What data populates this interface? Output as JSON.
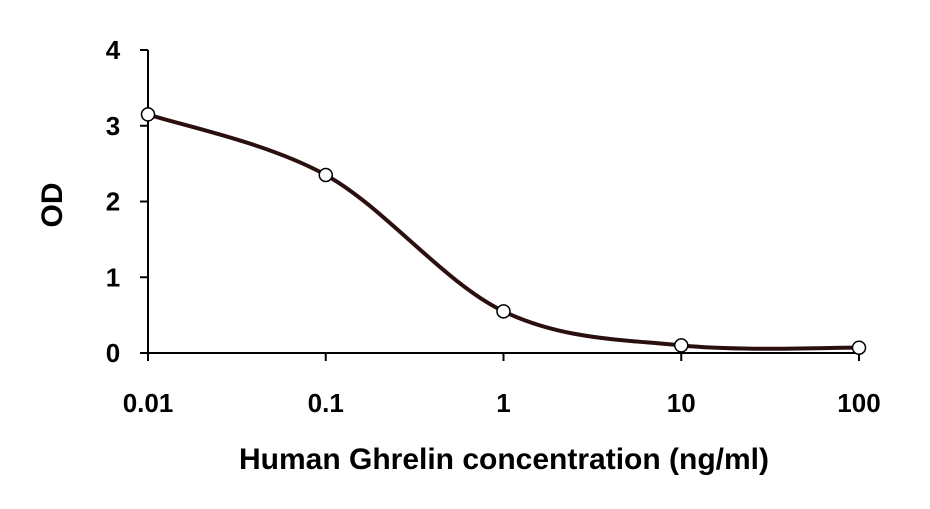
{
  "chart_data": {
    "type": "line",
    "xscale": "log",
    "xlim": [
      0.01,
      100
    ],
    "ylim": [
      0,
      4
    ],
    "xticks": [
      0.01,
      0.1,
      1,
      10,
      100
    ],
    "xtick_labels": [
      "0.01",
      "0.1",
      "1",
      "10",
      "100"
    ],
    "yticks": [
      0,
      1,
      2,
      3,
      4
    ],
    "ytick_labels": [
      "0",
      "1",
      "2",
      "3",
      "4"
    ],
    "xlabel": "Human Ghrelin concentration (ng/ml)",
    "ylabel": "OD",
    "grid": false,
    "series": [
      {
        "x": [
          0.01,
          0.1,
          1,
          10,
          100
        ],
        "y": [
          3.15,
          2.35,
          0.55,
          0.1,
          0.07
        ],
        "color": "#2b0f0f",
        "marker_fill": "#ffffff",
        "smooth": true
      }
    ]
  }
}
